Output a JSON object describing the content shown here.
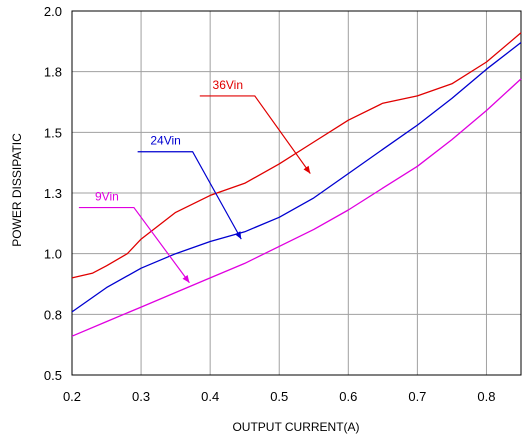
{
  "chart_data": {
    "type": "line",
    "title": "",
    "xlabel": "OUTPUT CURRENT(A)",
    "ylabel": "POWER DISSIPATIC",
    "xlim": [
      0.2,
      0.85
    ],
    "ylim": [
      0.5,
      2.0
    ],
    "x_ticks": [
      0.2,
      0.3,
      0.4,
      0.5,
      0.6,
      0.7,
      0.8
    ],
    "x_tick_labels": [
      "0.2",
      "0.3",
      "0.4",
      "0.5",
      "0.6",
      "0.7",
      "0.8"
    ],
    "y_ticks": [
      0.5,
      0.75,
      1.0,
      1.25,
      1.5,
      1.75,
      2.0
    ],
    "y_tick_labels": [
      "0.5",
      "0.8",
      "1.0",
      "1.3",
      "1.5",
      "1.8",
      "2.0"
    ],
    "grid": true,
    "series": [
      {
        "name": "36Vin",
        "color": "#e00000",
        "x": [
          0.2,
          0.23,
          0.25,
          0.28,
          0.3,
          0.35,
          0.4,
          0.45,
          0.5,
          0.55,
          0.6,
          0.65,
          0.7,
          0.75,
          0.8,
          0.85
        ],
        "y": [
          0.9,
          0.92,
          0.95,
          1.0,
          1.06,
          1.17,
          1.24,
          1.29,
          1.37,
          1.46,
          1.55,
          1.62,
          1.65,
          1.7,
          1.79,
          1.91
        ],
        "label_at": [
          0.385,
          1.65
        ],
        "pointer_to": [
          0.545,
          1.33
        ]
      },
      {
        "name": "24Vin",
        "color": "#0000d0",
        "x": [
          0.2,
          0.25,
          0.3,
          0.35,
          0.4,
          0.45,
          0.5,
          0.55,
          0.6,
          0.65,
          0.7,
          0.75,
          0.8,
          0.85
        ],
        "y": [
          0.76,
          0.86,
          0.94,
          1.0,
          1.05,
          1.09,
          1.15,
          1.23,
          1.33,
          1.43,
          1.53,
          1.64,
          1.76,
          1.87
        ],
        "label_at": [
          0.295,
          1.42
        ],
        "pointer_to": [
          0.445,
          1.06
        ]
      },
      {
        "name": "9Vin",
        "color": "#e000e0",
        "x": [
          0.2,
          0.25,
          0.3,
          0.35,
          0.4,
          0.45,
          0.5,
          0.55,
          0.6,
          0.65,
          0.7,
          0.75,
          0.8,
          0.85
        ],
        "y": [
          0.66,
          0.72,
          0.78,
          0.84,
          0.9,
          0.96,
          1.03,
          1.1,
          1.18,
          1.27,
          1.36,
          1.47,
          1.59,
          1.72
        ],
        "label_at": [
          0.21,
          1.19
        ],
        "pointer_to": [
          0.37,
          0.88
        ]
      }
    ]
  }
}
